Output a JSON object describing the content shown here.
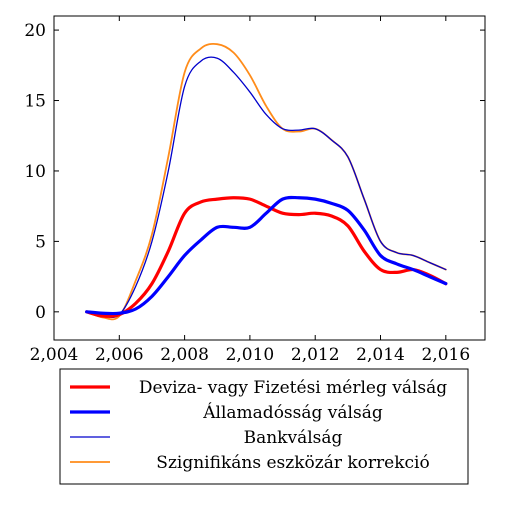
{
  "chart_data": {
    "type": "line",
    "title": "",
    "xlabel": "",
    "ylabel": "",
    "xlim": [
      2004,
      2017.2
    ],
    "ylim": [
      -2,
      21
    ],
    "x_ticks": [
      2004,
      2006,
      2008,
      2010,
      2012,
      2014,
      2016
    ],
    "x_tick_labels": [
      "2,004",
      "2,006",
      "2,008",
      "2,010",
      "2,012",
      "2,014",
      "2,016"
    ],
    "y_ticks": [
      0,
      5,
      10,
      15,
      20
    ],
    "y_tick_labels": [
      "0",
      "5",
      "10",
      "15",
      "20"
    ],
    "grid": false,
    "legend_position": "bottom-outside",
    "series": [
      {
        "name": "Deviza- vagy Fizetési mérleg válság",
        "color": "#ff0000",
        "width": "thick",
        "x": [
          2005,
          2005.5,
          2006,
          2006.5,
          2007,
          2007.5,
          2008,
          2008.5,
          2009,
          2009.5,
          2010,
          2010.5,
          2011,
          2011.5,
          2012,
          2012.5,
          2013,
          2013.5,
          2014,
          2014.5,
          2015,
          2015.5,
          2016
        ],
        "y": [
          0,
          -0.3,
          -0.2,
          0.6,
          2,
          4.3,
          7,
          7.8,
          8,
          8.1,
          8,
          7.5,
          7,
          6.9,
          7,
          6.8,
          6.1,
          4.3,
          3,
          2.8,
          3,
          2.6,
          2
        ]
      },
      {
        "name": "Államadósság válság",
        "color": "#0000ff",
        "width": "thick",
        "x": [
          2005,
          2005.5,
          2006,
          2006.5,
          2007,
          2007.5,
          2008,
          2008.5,
          2009,
          2009.5,
          2010,
          2010.5,
          2011,
          2011.5,
          2012,
          2012.5,
          2013,
          2013.5,
          2014,
          2014.5,
          2015,
          2015.5,
          2016
        ],
        "y": [
          0,
          -0.1,
          -0.1,
          0.2,
          1.1,
          2.5,
          4,
          5.1,
          6,
          6,
          6,
          7,
          8,
          8.1,
          8,
          7.7,
          7.2,
          5.8,
          4,
          3.4,
          3,
          2.5,
          2
        ]
      },
      {
        "name": "Bankválság",
        "color": "#0000cc",
        "width": "thin",
        "x": [
          2005,
          2005.5,
          2006,
          2006.5,
          2007,
          2007.5,
          2008,
          2008.5,
          2009,
          2009.5,
          2010,
          2010.5,
          2011,
          2011.5,
          2012,
          2012.5,
          2013,
          2013.5,
          2014,
          2014.5,
          2015,
          2015.5,
          2016
        ],
        "y": [
          0,
          -0.3,
          -0.2,
          1.8,
          5,
          10,
          16,
          17.8,
          18,
          17,
          15.6,
          14,
          13,
          12.9,
          13,
          12.2,
          11,
          8,
          5,
          4.2,
          4,
          3.5,
          3
        ]
      },
      {
        "name": "Szignifikáns eszközár korrekció",
        "color": "#ff8c1a",
        "width": "medium",
        "x": [
          2005,
          2005.5,
          2006,
          2006.5,
          2007,
          2007.5,
          2008,
          2008.5,
          2009,
          2009.5,
          2010,
          2010.5,
          2011,
          2011.5,
          2012,
          2012.5,
          2013,
          2013.5,
          2014,
          2014.5,
          2015,
          2015.5,
          2016
        ],
        "y": [
          0,
          -0.4,
          -0.3,
          2.2,
          5.5,
          11,
          17,
          18.7,
          19,
          18.4,
          16.8,
          14.6,
          13,
          12.8,
          13,
          12.2,
          11,
          8,
          5,
          4.2,
          4,
          3.5,
          3
        ]
      }
    ]
  }
}
